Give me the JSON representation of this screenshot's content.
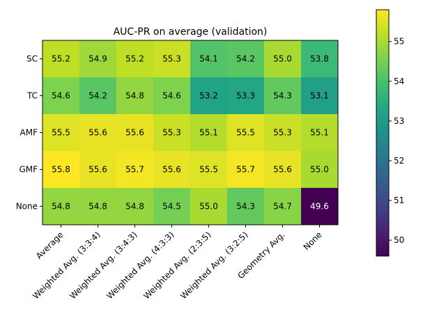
{
  "chart_data": {
    "type": "heatmap",
    "title": "AUC-PR on average (validation)",
    "xlabel": "",
    "ylabel": "",
    "x_categories": [
      "Average",
      "Weighted Avg. (3:3:4)",
      "Weighted Avg. (3:4:3)",
      "Weighted Avg. (4:3:3)",
      "Weighted Avg. (2:3:5)",
      "Weighted Avg. (3:2:5)",
      "Geometry Avg.",
      "None"
    ],
    "y_categories": [
      "SC",
      "TC",
      "AMF",
      "GMF",
      "None"
    ],
    "values": [
      [
        55.2,
        54.9,
        55.2,
        55.3,
        54.1,
        54.2,
        55.0,
        53.8
      ],
      [
        54.6,
        54.2,
        54.8,
        54.6,
        53.2,
        53.3,
        54.3,
        53.1
      ],
      [
        55.5,
        55.6,
        55.6,
        55.3,
        55.1,
        55.5,
        55.3,
        55.1
      ],
      [
        55.8,
        55.6,
        55.7,
        55.6,
        55.5,
        55.7,
        55.6,
        55.0
      ],
      [
        54.8,
        54.8,
        54.8,
        54.5,
        55.0,
        54.3,
        54.7,
        49.6
      ]
    ],
    "labels": [
      [
        "55.2",
        "54.9",
        "55.2",
        "55.3",
        "54.1",
        "54.2",
        "55.0",
        "53.8"
      ],
      [
        "54.6",
        "54.2",
        "54.8",
        "54.6",
        "53.2",
        "53.3",
        "54.3",
        "53.1"
      ],
      [
        "55.5",
        "55.6",
        "55.6",
        "55.3",
        "55.1",
        "55.5",
        "55.3",
        "55.1"
      ],
      [
        "55.8",
        "55.6",
        "55.7",
        "55.6",
        "55.5",
        "55.7",
        "55.6",
        "55.0"
      ],
      [
        "54.8",
        "54.8",
        "54.8",
        "54.5",
        "55.0",
        "54.3",
        "54.7",
        "49.6"
      ]
    ],
    "colormap": "viridis",
    "vmin": 49.6,
    "vmax": 55.8,
    "colorbar_ticks": [
      50,
      51,
      52,
      53,
      54,
      55
    ],
    "colorbar_tick_labels": [
      "50",
      "51",
      "52",
      "53",
      "54",
      "55"
    ]
  }
}
